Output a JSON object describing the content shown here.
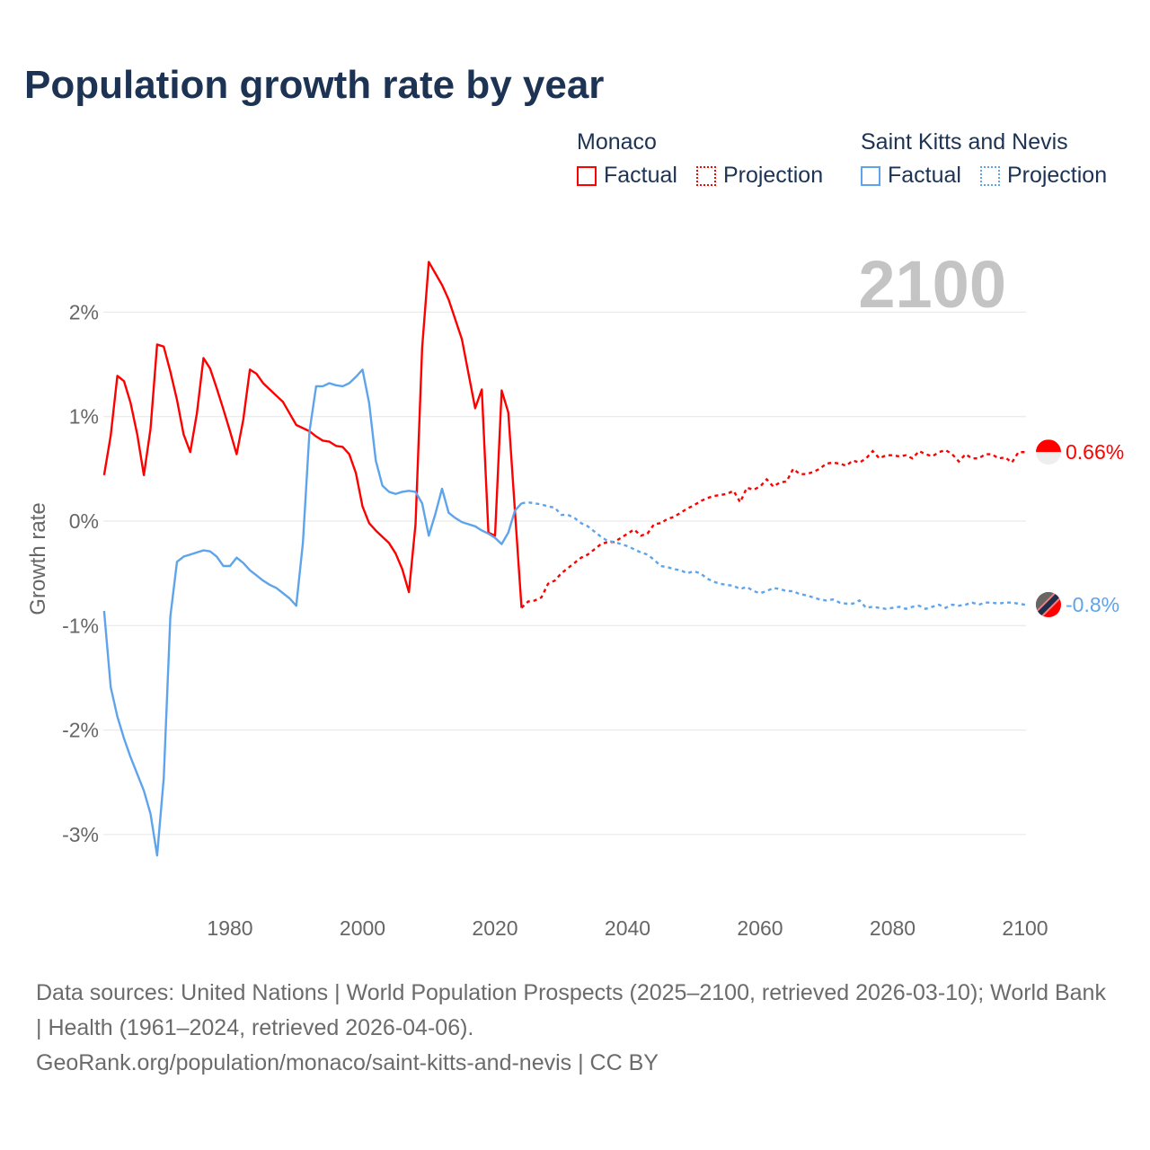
{
  "title": "Population growth rate by year",
  "legend": [
    {
      "country": "Monaco",
      "factual": "Factual",
      "projection": "Projection",
      "color": "#ff0000"
    },
    {
      "country": "Saint Kitts and Nevis",
      "factual": "Factual",
      "projection": "Projection",
      "color": "#5ea4ec"
    }
  ],
  "year_label": "2100",
  "footer": {
    "sources": "Data sources: United Nations | World Population Prospects (2025–2100, retrieved 2026-03-10); World Bank | Health (1961–2024, retrieved 2026-04-06).",
    "credit": "GeoRank.org/population/monaco/saint-kitts-and-nevis | CC BY"
  },
  "chart_data": {
    "type": "line",
    "title": "Population growth rate by year",
    "xlabel": "",
    "ylabel": "Growth rate",
    "xlim": [
      1961,
      2100
    ],
    "ylim": [
      -3.5,
      2.6
    ],
    "grid": true,
    "x_ticks": [
      "1980",
      "2000",
      "2020",
      "2040",
      "2060",
      "2080",
      "2100"
    ],
    "x_tick_values": [
      1980,
      2000,
      2020,
      2040,
      2060,
      2080,
      2100
    ],
    "y_ticks": [
      "2%",
      "1%",
      "0%",
      "-1%",
      "-2%",
      "-3%"
    ],
    "y_tick_values": [
      2,
      1,
      0,
      -1,
      -2,
      -3
    ],
    "legend_position": "top-right",
    "series": [
      {
        "name": "Monaco",
        "color": "#ff0000",
        "end_label": "0.66%",
        "factual_start": 1961,
        "factual": [
          0.44,
          0.82,
          1.39,
          1.34,
          1.13,
          0.83,
          0.44,
          0.88,
          1.69,
          1.67,
          1.43,
          1.16,
          0.83,
          0.66,
          1.03,
          1.56,
          1.46,
          1.27,
          1.07,
          0.86,
          0.64,
          0.97,
          1.45,
          1.41,
          1.32,
          1.26,
          1.2,
          1.14,
          1.03,
          0.92,
          0.89,
          0.86,
          0.81,
          0.77,
          0.76,
          0.72,
          0.71,
          0.64,
          0.46,
          0.14,
          -0.02,
          -0.09,
          -0.15,
          -0.21,
          -0.31,
          -0.46,
          -0.68,
          -0.03,
          1.66,
          2.48,
          2.37,
          2.26,
          2.12,
          1.93,
          1.74,
          1.41,
          1.08,
          1.26,
          -0.11,
          -0.14,
          1.25,
          1.04,
          0.1,
          -0.83
        ],
        "projection_start": 2025,
        "projection": [
          -0.77,
          -0.76,
          -0.73,
          -0.6,
          -0.57,
          -0.5,
          -0.45,
          -0.4,
          -0.35,
          -0.32,
          -0.27,
          -0.22,
          -0.2,
          -0.2,
          -0.16,
          -0.12,
          -0.08,
          -0.14,
          -0.12,
          -0.03,
          -0.02,
          0.02,
          0.04,
          0.08,
          0.12,
          0.15,
          0.19,
          0.22,
          0.24,
          0.25,
          0.26,
          0.29,
          0.18,
          0.32,
          0.3,
          0.33,
          0.4,
          0.33,
          0.37,
          0.38,
          0.5,
          0.45,
          0.45,
          0.47,
          0.5,
          0.55,
          0.56,
          0.55,
          0.53,
          0.58,
          0.56,
          0.6,
          0.67,
          0.6,
          0.63,
          0.63,
          0.62,
          0.63,
          0.6,
          0.67,
          0.64,
          0.62,
          0.66,
          0.68,
          0.64,
          0.57,
          0.64,
          0.6,
          0.6,
          0.64,
          0.64,
          0.6,
          0.61,
          0.56,
          0.66,
          0.66
        ]
      },
      {
        "name": "Saint Kitts and Nevis",
        "color": "#5ea4ec",
        "end_label": "-0.8%",
        "factual_start": 1961,
        "factual": [
          -0.86,
          -1.59,
          -1.87,
          -2.08,
          -2.26,
          -2.42,
          -2.58,
          -2.8,
          -3.2,
          -2.46,
          -0.91,
          -0.39,
          -0.34,
          -0.32,
          -0.3,
          -0.28,
          -0.29,
          -0.34,
          -0.43,
          -0.43,
          -0.35,
          -0.4,
          -0.47,
          -0.52,
          -0.57,
          -0.61,
          -0.64,
          -0.69,
          -0.74,
          -0.81,
          -0.21,
          0.86,
          1.29,
          1.29,
          1.32,
          1.3,
          1.29,
          1.32,
          1.38,
          1.45,
          1.13,
          0.58,
          0.34,
          0.28,
          0.26,
          0.28,
          0.29,
          0.28,
          0.17,
          -0.14,
          0.07,
          0.31,
          0.08,
          0.03,
          -0.01,
          -0.03,
          -0.05,
          -0.09,
          -0.12,
          -0.16,
          -0.22,
          -0.11,
          0.1,
          0.17
        ],
        "projection_start": 2025,
        "projection": [
          0.18,
          0.17,
          0.16,
          0.14,
          0.13,
          0.06,
          0.06,
          0.03,
          -0.02,
          -0.05,
          -0.1,
          -0.15,
          -0.19,
          -0.2,
          -0.22,
          -0.24,
          -0.27,
          -0.3,
          -0.32,
          -0.37,
          -0.43,
          -0.44,
          -0.46,
          -0.47,
          -0.5,
          -0.48,
          -0.5,
          -0.55,
          -0.58,
          -0.6,
          -0.61,
          -0.62,
          -0.65,
          -0.63,
          -0.67,
          -0.69,
          -0.67,
          -0.64,
          -0.65,
          -0.67,
          -0.67,
          -0.7,
          -0.71,
          -0.73,
          -0.75,
          -0.76,
          -0.75,
          -0.78,
          -0.79,
          -0.79,
          -0.76,
          -0.83,
          -0.82,
          -0.83,
          -0.84,
          -0.83,
          -0.82,
          -0.84,
          -0.82,
          -0.81,
          -0.84,
          -0.82,
          -0.8,
          -0.83,
          -0.8,
          -0.81,
          -0.8,
          -0.78,
          -0.8,
          -0.78,
          -0.78,
          -0.79,
          -0.78,
          -0.78,
          -0.79,
          -0.8
        ]
      }
    ]
  }
}
